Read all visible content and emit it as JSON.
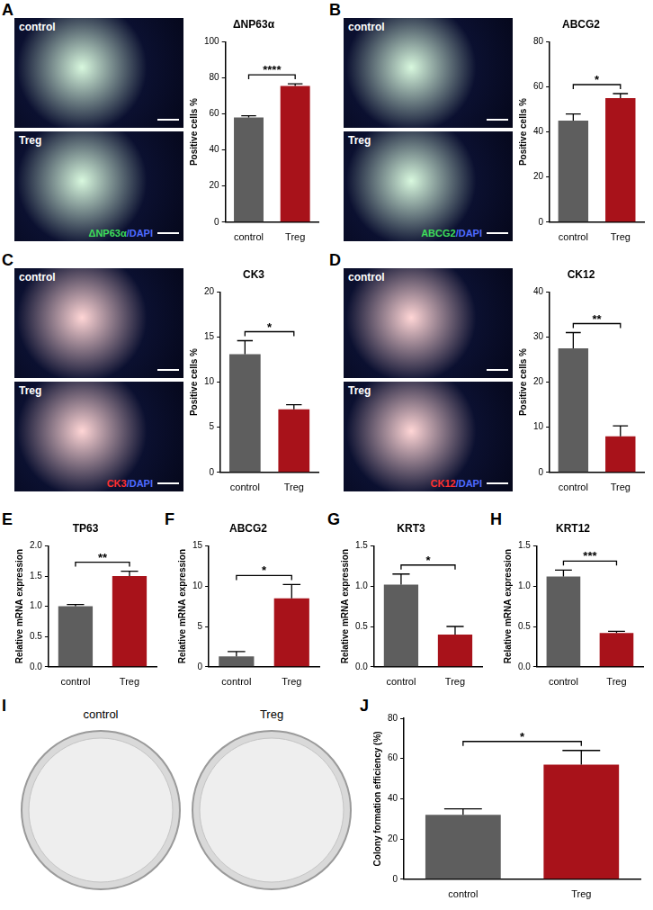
{
  "chart_data": [
    {
      "panel": "A",
      "type": "bar",
      "title": "ΔNP63α",
      "y_label": "Positive cells %",
      "categories": [
        "control",
        "Treg"
      ],
      "values": [
        58,
        75.5
      ],
      "errors": [
        1,
        1.2
      ],
      "colors": [
        "#5e5e5e",
        "#a8121a"
      ],
      "ylim": [
        0,
        100
      ],
      "yticks": [
        0,
        20,
        40,
        60,
        80,
        100
      ],
      "grid": false,
      "significance": "****"
    },
    {
      "panel": "B",
      "type": "bar",
      "title": "ABCG2",
      "y_label": "Positive cells %",
      "categories": [
        "control",
        "Treg"
      ],
      "values": [
        45,
        55
      ],
      "errors": [
        3,
        2
      ],
      "colors": [
        "#5e5e5e",
        "#a8121a"
      ],
      "ylim": [
        0,
        80
      ],
      "yticks": [
        0,
        20,
        40,
        60,
        80
      ],
      "grid": false,
      "significance": "*"
    },
    {
      "panel": "C",
      "type": "bar",
      "title": "CK3",
      "y_label": "Positive cells %",
      "categories": [
        "control",
        "Treg"
      ],
      "values": [
        13.1,
        7
      ],
      "errors": [
        1.5,
        0.5
      ],
      "colors": [
        "#5e5e5e",
        "#a8121a"
      ],
      "ylim": [
        0,
        20
      ],
      "yticks": [
        0,
        5,
        10,
        15,
        20
      ],
      "grid": false,
      "significance": "*"
    },
    {
      "panel": "D",
      "type": "bar",
      "title": "CK12",
      "y_label": "Positive cells %",
      "categories": [
        "control",
        "Treg"
      ],
      "values": [
        27.5,
        8
      ],
      "errors": [
        3.5,
        2.3
      ],
      "colors": [
        "#5e5e5e",
        "#a8121a"
      ],
      "ylim": [
        0,
        40
      ],
      "yticks": [
        0,
        10,
        20,
        30,
        40
      ],
      "grid": false,
      "significance": "**"
    },
    {
      "panel": "E",
      "type": "bar",
      "title": "TP63",
      "y_label": "Relative mRNA expression",
      "categories": [
        "control",
        "Treg"
      ],
      "values": [
        1.0,
        1.5
      ],
      "errors": [
        0.03,
        0.08
      ],
      "colors": [
        "#5e5e5e",
        "#a8121a"
      ],
      "ylim": [
        0,
        2
      ],
      "yticks": [
        {
          "value": 0,
          "label": "0.0"
        },
        {
          "value": 0.5,
          "label": "0.5"
        },
        {
          "value": 1,
          "label": "1.0"
        },
        {
          "value": 1.5,
          "label": "1.5"
        },
        {
          "value": 2,
          "label": "2.0"
        }
      ],
      "grid": false,
      "significance": "**"
    },
    {
      "panel": "F",
      "type": "bar",
      "title": "ABCG2",
      "y_label": "Relative mRNA expression",
      "categories": [
        "control",
        "Treg"
      ],
      "values": [
        1.3,
        8.5
      ],
      "errors": [
        0.6,
        1.7
      ],
      "colors": [
        "#5e5e5e",
        "#a8121a"
      ],
      "ylim": [
        0,
        15
      ],
      "yticks": [
        0,
        5,
        10,
        15
      ],
      "grid": false,
      "significance": "*"
    },
    {
      "panel": "G",
      "type": "bar",
      "title": "KRT3",
      "y_label": "Relative mRNA expression",
      "categories": [
        "control",
        "Treg"
      ],
      "values": [
        1.02,
        0.4
      ],
      "errors": [
        0.13,
        0.1
      ],
      "colors": [
        "#5e5e5e",
        "#a8121a"
      ],
      "ylim": [
        0,
        1.5
      ],
      "yticks": [
        {
          "value": 0,
          "label": "0.0"
        },
        {
          "value": 0.5,
          "label": "0.5"
        },
        {
          "value": 1,
          "label": "1.0"
        },
        {
          "value": 1.5,
          "label": "1.5"
        }
      ],
      "grid": false,
      "significance": "*"
    },
    {
      "panel": "H",
      "type": "bar",
      "title": "KRT12",
      "y_label": "Relative mRNA expression",
      "categories": [
        "control",
        "Treg"
      ],
      "values": [
        1.12,
        0.42
      ],
      "errors": [
        0.08,
        0.02
      ],
      "colors": [
        "#5e5e5e",
        "#a8121a"
      ],
      "ylim": [
        0,
        1.5
      ],
      "yticks": [
        {
          "value": 0,
          "label": "0.0"
        },
        {
          "value": 0.5,
          "label": "0.5"
        },
        {
          "value": 1,
          "label": "1.0"
        },
        {
          "value": 1.5,
          "label": "1.5"
        }
      ],
      "grid": false,
      "significance": "***"
    },
    {
      "panel": "J",
      "type": "bar",
      "y_label": "Colony formation efficiency (%)",
      "categories": [
        "control",
        "Treg"
      ],
      "values": [
        32,
        57
      ],
      "errors": [
        3,
        7
      ],
      "colors": [
        "#5e5e5e",
        "#a8121a"
      ],
      "ylim": [
        0,
        80
      ],
      "yticks": [
        0,
        20,
        40,
        60,
        80
      ],
      "grid": false,
      "significance": "*"
    }
  ],
  "micrographs": [
    {
      "panel": "A",
      "images": [
        "control",
        "Treg"
      ],
      "stain": [
        "ΔNP63α",
        "/DAPI"
      ],
      "color": "#3ddc5a"
    },
    {
      "panel": "B",
      "images": [
        "control",
        "Treg"
      ],
      "stain": [
        "ABCG2",
        "/DAPI"
      ],
      "color": "#3ddc5a"
    },
    {
      "panel": "C",
      "images": [
        "control",
        "Treg"
      ],
      "stain": [
        "CK3",
        "/DAPI"
      ],
      "color": "#ff3030"
    },
    {
      "panel": "D",
      "images": [
        "control",
        "Treg"
      ],
      "stain": [
        "CK12",
        "/DAPI"
      ],
      "color": "#ff3030"
    }
  ],
  "plates": {
    "panel": "I",
    "images": [
      "control",
      "Treg"
    ]
  }
}
